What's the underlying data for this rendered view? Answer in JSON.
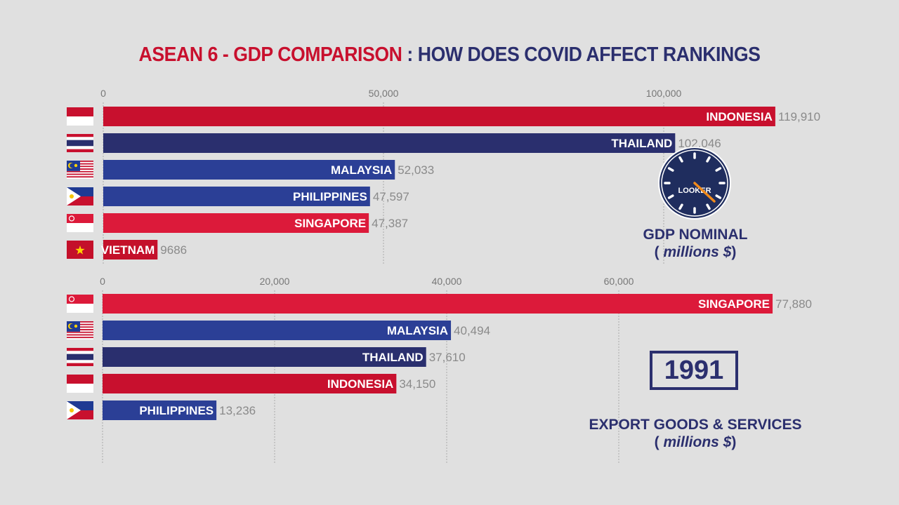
{
  "title": {
    "part1": "ASEAN 6 - GDP COMPARISON",
    "separator": " : ",
    "part2": "HOW DOES COVID AFFECT RANKINGS"
  },
  "year": "1991",
  "clock_logo": "LOOKER",
  "colors": {
    "indonesia": "#c8102e",
    "thailand": "#2a2f6e",
    "malaysia": "#2b3f96",
    "philippines": "#2b3f96",
    "singapore": "#dc1a3a",
    "vietnam": "#c4102a",
    "background": "#e0e0e0",
    "title_red": "#c8102e",
    "title_navy": "#2b2f6e"
  },
  "chart_data": [
    {
      "type": "bar",
      "orientation": "horizontal",
      "caption_line1": "GDP NOMINAL",
      "caption_line2_pre": "( ",
      "caption_line2_unit": "millions $",
      "caption_line2_post": ")",
      "xlim": [
        0,
        120000
      ],
      "ticks": [
        {
          "value": 0,
          "label": "0"
        },
        {
          "value": 50000,
          "label": "50,000"
        },
        {
          "value": 100000,
          "label": "100,000"
        }
      ],
      "grid": true,
      "categories": [
        "INDONESIA",
        "THAILAND",
        "MALAYSIA",
        "PHILIPPINES",
        "SINGAPORE",
        "VIETNAM"
      ],
      "values": [
        119910,
        102046,
        52033,
        47597,
        47387,
        9686
      ],
      "value_labels": [
        "119,910",
        "102,046",
        "52,033",
        "47,597",
        "47,387",
        "9686"
      ],
      "flags": [
        "indonesia",
        "thailand",
        "malaysia",
        "philippines",
        "singapore",
        "vietnam"
      ]
    },
    {
      "type": "bar",
      "orientation": "horizontal",
      "caption_line1": "EXPORT GOODS & SERVICES",
      "caption_line2_pre": "( ",
      "caption_line2_unit": "millions $",
      "caption_line2_post": ")",
      "xlim": [
        0,
        78000
      ],
      "ticks": [
        {
          "value": 0,
          "label": "0"
        },
        {
          "value": 20000,
          "label": "20,000"
        },
        {
          "value": 40000,
          "label": "40,000"
        },
        {
          "value": 60000,
          "label": "60,000"
        }
      ],
      "grid": true,
      "categories": [
        "SINGAPORE",
        "MALAYSIA",
        "THAILAND",
        "INDONESIA",
        "PHILIPPINES"
      ],
      "values": [
        77880,
        40494,
        37610,
        34150,
        13236
      ],
      "value_labels": [
        "77,880",
        "40,494",
        "37,610",
        "34,150",
        "13,236"
      ],
      "flags": [
        "singapore",
        "malaysia",
        "thailand",
        "indonesia",
        "philippines"
      ]
    }
  ]
}
